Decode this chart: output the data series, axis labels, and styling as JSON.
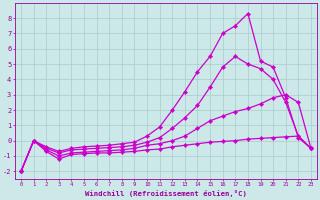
{
  "background_color": "#cce8e8",
  "grid_color": "#aacccc",
  "line_color": "#cc00cc",
  "marker_color": "#cc00cc",
  "xlabel": "Windchill (Refroidissement éolien,°C)",
  "xlabel_color": "#990099",
  "tick_color": "#990099",
  "xlim": [
    -0.5,
    23.5
  ],
  "ylim": [
    -2.5,
    9.0
  ],
  "xticks": [
    0,
    1,
    2,
    3,
    4,
    5,
    6,
    7,
    8,
    9,
    10,
    11,
    12,
    13,
    14,
    15,
    16,
    17,
    18,
    19,
    20,
    21,
    22,
    23
  ],
  "yticks": [
    -2,
    -1,
    0,
    1,
    2,
    3,
    4,
    5,
    6,
    7,
    8
  ],
  "series1": [
    [
      0,
      -2.0
    ],
    [
      1,
      0.0
    ],
    [
      2,
      -0.7
    ],
    [
      3,
      -1.2
    ],
    [
      4,
      -0.9
    ],
    [
      5,
      -0.85
    ],
    [
      6,
      -0.8
    ],
    [
      7,
      -0.8
    ],
    [
      8,
      -0.75
    ],
    [
      9,
      -0.7
    ],
    [
      10,
      -0.6
    ],
    [
      11,
      -0.55
    ],
    [
      12,
      -0.4
    ],
    [
      13,
      -0.3
    ],
    [
      14,
      -0.2
    ],
    [
      15,
      -0.1
    ],
    [
      16,
      -0.05
    ],
    [
      17,
      0.0
    ],
    [
      18,
      0.1
    ],
    [
      19,
      0.15
    ],
    [
      20,
      0.2
    ],
    [
      21,
      0.25
    ],
    [
      22,
      0.3
    ],
    [
      23,
      -0.5
    ]
  ],
  "series2": [
    [
      0,
      -2.0
    ],
    [
      1,
      0.0
    ],
    [
      2,
      -0.6
    ],
    [
      3,
      -1.0
    ],
    [
      4,
      -0.8
    ],
    [
      5,
      -0.75
    ],
    [
      6,
      -0.7
    ],
    [
      7,
      -0.65
    ],
    [
      8,
      -0.6
    ],
    [
      9,
      -0.5
    ],
    [
      10,
      -0.3
    ],
    [
      11,
      -0.2
    ],
    [
      12,
      0.0
    ],
    [
      13,
      0.3
    ],
    [
      14,
      0.8
    ],
    [
      15,
      1.3
    ],
    [
      16,
      1.6
    ],
    [
      17,
      1.9
    ],
    [
      18,
      2.1
    ],
    [
      19,
      2.4
    ],
    [
      20,
      2.8
    ],
    [
      21,
      3.0
    ],
    [
      22,
      2.5
    ],
    [
      23,
      -0.5
    ]
  ],
  "series3": [
    [
      0,
      -2.0
    ],
    [
      1,
      0.0
    ],
    [
      2,
      -0.5
    ],
    [
      3,
      -0.8
    ],
    [
      4,
      -0.6
    ],
    [
      5,
      -0.55
    ],
    [
      6,
      -0.5
    ],
    [
      7,
      -0.45
    ],
    [
      8,
      -0.4
    ],
    [
      9,
      -0.3
    ],
    [
      10,
      -0.1
    ],
    [
      11,
      0.2
    ],
    [
      12,
      0.8
    ],
    [
      13,
      1.5
    ],
    [
      14,
      2.3
    ],
    [
      15,
      3.5
    ],
    [
      16,
      4.8
    ],
    [
      17,
      5.5
    ],
    [
      18,
      5.0
    ],
    [
      19,
      4.7
    ],
    [
      20,
      4.0
    ],
    [
      21,
      2.5
    ],
    [
      22,
      0.3
    ],
    [
      23,
      -0.5
    ]
  ],
  "series4": [
    [
      0,
      -2.0
    ],
    [
      1,
      0.0
    ],
    [
      2,
      -0.4
    ],
    [
      3,
      -0.7
    ],
    [
      4,
      -0.5
    ],
    [
      5,
      -0.4
    ],
    [
      6,
      -0.35
    ],
    [
      7,
      -0.3
    ],
    [
      8,
      -0.2
    ],
    [
      9,
      -0.1
    ],
    [
      10,
      0.3
    ],
    [
      11,
      0.9
    ],
    [
      12,
      2.0
    ],
    [
      13,
      3.2
    ],
    [
      14,
      4.5
    ],
    [
      15,
      5.5
    ],
    [
      16,
      7.0
    ],
    [
      17,
      7.5
    ],
    [
      18,
      8.3
    ],
    [
      19,
      5.2
    ],
    [
      20,
      4.8
    ],
    [
      21,
      2.8
    ],
    [
      22,
      0.2
    ],
    [
      23,
      -0.5
    ]
  ]
}
